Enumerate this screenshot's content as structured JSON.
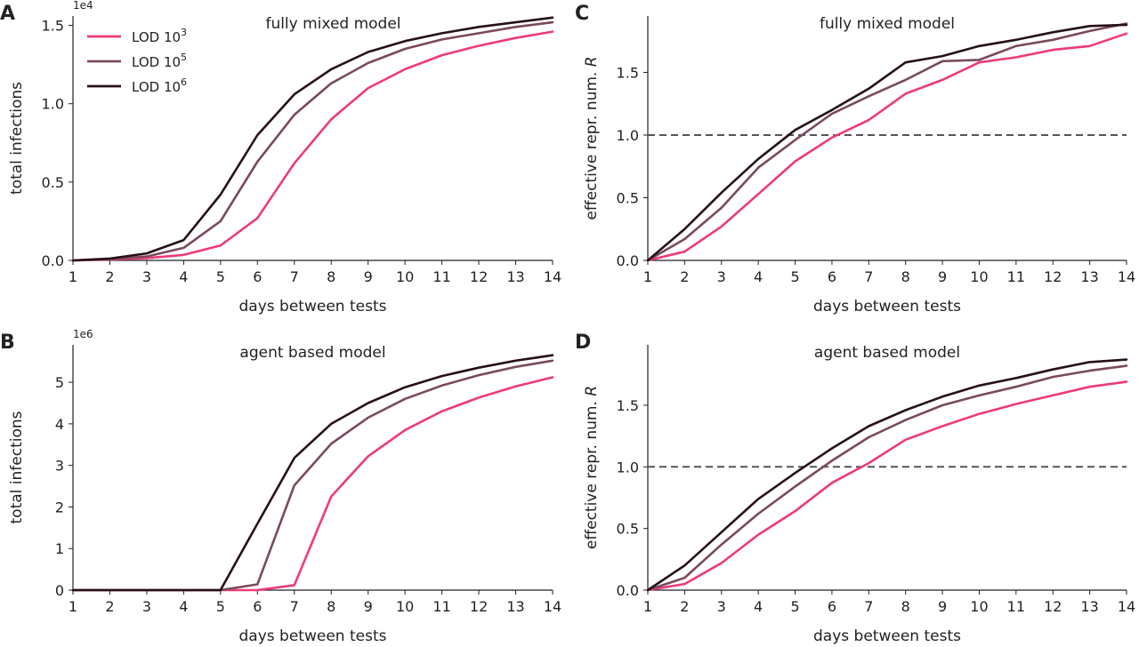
{
  "colors": {
    "lod3": "#ee3a79",
    "lod5": "#7a4a5c",
    "lod6": "#26101a",
    "reference_line": "#555555",
    "axis": "#222222"
  },
  "legend": {
    "placement": "top-left of panel A",
    "entries": [
      {
        "base": "LOD 10",
        "sup": "3",
        "color_key": "lod3"
      },
      {
        "base": "LOD 10",
        "sup": "5",
        "color_key": "lod5"
      },
      {
        "base": "LOD 10",
        "sup": "6",
        "color_key": "lod6"
      }
    ]
  },
  "chart_data": [
    {
      "panel": "A",
      "type": "line",
      "title": "fully mixed model",
      "xlabel": "days between tests",
      "ylabel": "total infections",
      "exponent_label": "1e4",
      "x": [
        1,
        2,
        3,
        4,
        5,
        6,
        7,
        8,
        9,
        10,
        11,
        12,
        13,
        14
      ],
      "xlim": [
        1,
        14
      ],
      "ylim": [
        0,
        1.56
      ],
      "yticks": [
        0.0,
        0.5,
        1.0,
        1.5
      ],
      "ytick_labels": [
        "0.0",
        "0.5",
        "1.0",
        "1.5"
      ],
      "grid": false,
      "series": [
        {
          "name": "LOD 10^3",
          "color_key": "lod3",
          "values": [
            0.0,
            0.005,
            0.015,
            0.035,
            0.095,
            0.27,
            0.62,
            0.9,
            1.1,
            1.22,
            1.31,
            1.37,
            1.42,
            1.46
          ]
        },
        {
          "name": "LOD 10^5",
          "color_key": "lod5",
          "values": [
            0.0,
            0.008,
            0.025,
            0.08,
            0.25,
            0.63,
            0.93,
            1.13,
            1.26,
            1.35,
            1.41,
            1.45,
            1.49,
            1.52
          ]
        },
        {
          "name": "LOD 10^6",
          "color_key": "lod6",
          "values": [
            0.0,
            0.012,
            0.045,
            0.13,
            0.42,
            0.8,
            1.06,
            1.22,
            1.33,
            1.4,
            1.45,
            1.49,
            1.52,
            1.55
          ]
        }
      ]
    },
    {
      "panel": "B",
      "type": "line",
      "title": "agent based model",
      "xlabel": "days between tests",
      "ylabel": "total infections",
      "exponent_label": "1e6",
      "x": [
        1,
        2,
        3,
        4,
        5,
        6,
        7,
        8,
        9,
        10,
        11,
        12,
        13,
        14
      ],
      "xlim": [
        1,
        14
      ],
      "ylim": [
        0,
        5.9
      ],
      "yticks": [
        0,
        1,
        2,
        3,
        4,
        5
      ],
      "ytick_labels": [
        "0",
        "1",
        "2",
        "3",
        "4",
        "5"
      ],
      "grid": false,
      "series": [
        {
          "name": "LOD 10^3",
          "color_key": "lod3",
          "values": [
            0.0,
            0.0,
            0.0,
            0.0,
            0.0,
            0.0,
            0.12,
            2.25,
            3.22,
            3.85,
            4.3,
            4.63,
            4.9,
            5.12
          ]
        },
        {
          "name": "LOD 10^5",
          "color_key": "lod5",
          "values": [
            0.0,
            0.0,
            0.0,
            0.0,
            0.0,
            0.14,
            2.52,
            3.52,
            4.15,
            4.6,
            4.92,
            5.17,
            5.37,
            5.52
          ]
        },
        {
          "name": "LOD 10^6",
          "color_key": "lod6",
          "values": [
            0.0,
            0.0,
            0.0,
            0.0,
            0.0,
            1.6,
            3.18,
            4.0,
            4.5,
            4.88,
            5.15,
            5.35,
            5.52,
            5.65
          ]
        }
      ]
    },
    {
      "panel": "C",
      "type": "line",
      "title": "fully mixed model",
      "xlabel": "days between tests",
      "ylabel": "effective repr. num. R",
      "ylabel_base": "effective repr. num. ",
      "ylabel_symbol": "R",
      "x": [
        1,
        2,
        3,
        4,
        5,
        6,
        7,
        8,
        9,
        10,
        11,
        12,
        13,
        14
      ],
      "xlim": [
        1,
        14
      ],
      "ylim": [
        0,
        1.95
      ],
      "yticks": [
        0.0,
        0.5,
        1.0,
        1.5
      ],
      "ytick_labels": [
        "0.0",
        "0.5",
        "1.0",
        "1.5"
      ],
      "reference_line": 1.0,
      "grid": false,
      "series": [
        {
          "name": "LOD 10^3",
          "color_key": "lod3",
          "values": [
            0.0,
            0.07,
            0.27,
            0.53,
            0.79,
            0.98,
            1.12,
            1.33,
            1.44,
            1.58,
            1.62,
            1.68,
            1.71,
            1.81
          ]
        },
        {
          "name": "LOD 10^5",
          "color_key": "lod5",
          "values": [
            0.0,
            0.17,
            0.42,
            0.74,
            0.96,
            1.17,
            1.31,
            1.44,
            1.59,
            1.6,
            1.71,
            1.76,
            1.83,
            1.89
          ]
        },
        {
          "name": "LOD 10^6",
          "color_key": "lod6",
          "values": [
            0.0,
            0.25,
            0.54,
            0.81,
            1.04,
            1.2,
            1.37,
            1.58,
            1.63,
            1.71,
            1.76,
            1.82,
            1.87,
            1.88
          ]
        }
      ]
    },
    {
      "panel": "D",
      "type": "line",
      "title": "agent based model",
      "xlabel": "days between tests",
      "ylabel": "effective repr. num. R",
      "ylabel_base": "effective repr. num. ",
      "ylabel_symbol": "R",
      "x": [
        1,
        2,
        3,
        4,
        5,
        6,
        7,
        8,
        9,
        10,
        11,
        12,
        13,
        14
      ],
      "xlim": [
        1,
        14
      ],
      "ylim": [
        0,
        1.99
      ],
      "yticks": [
        0.0,
        0.5,
        1.0,
        1.5
      ],
      "ytick_labels": [
        "0.0",
        "0.5",
        "1.0",
        "1.5"
      ],
      "reference_line": 1.0,
      "grid": false,
      "series": [
        {
          "name": "LOD 10^3",
          "color_key": "lod3",
          "values": [
            0.0,
            0.05,
            0.22,
            0.45,
            0.64,
            0.87,
            1.03,
            1.22,
            1.33,
            1.43,
            1.51,
            1.58,
            1.65,
            1.69
          ]
        },
        {
          "name": "LOD 10^5",
          "color_key": "lod5",
          "values": [
            0.0,
            0.1,
            0.37,
            0.62,
            0.84,
            1.05,
            1.24,
            1.38,
            1.5,
            1.58,
            1.65,
            1.73,
            1.78,
            1.82
          ]
        },
        {
          "name": "LOD 10^6",
          "color_key": "lod6",
          "values": [
            0.0,
            0.2,
            0.47,
            0.74,
            0.95,
            1.15,
            1.33,
            1.46,
            1.57,
            1.66,
            1.72,
            1.79,
            1.85,
            1.87
          ]
        }
      ]
    }
  ]
}
